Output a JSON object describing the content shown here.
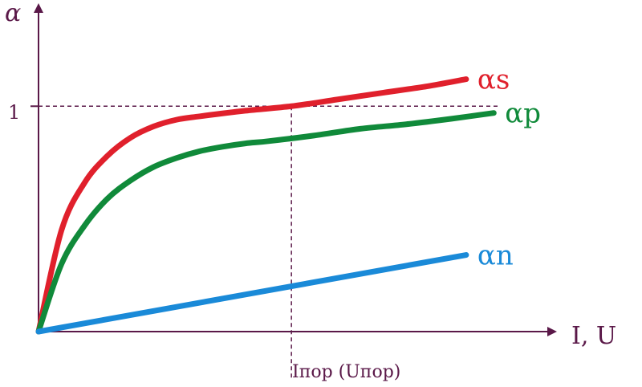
{
  "chart_data": {
    "type": "line",
    "ylabel": "α",
    "xlabel": "I, U",
    "y_tick_labels": [
      "1"
    ],
    "x_tick_labels": [
      "Iпор (Uпор)"
    ],
    "threshold": {
      "y_value": 1,
      "x_label": "Iпор (Uпор)"
    },
    "xlim": [
      0,
      1
    ],
    "ylim": [
      0,
      1.4
    ],
    "series": [
      {
        "name": "αs",
        "color": "#e0202c",
        "x": [
          0.0,
          0.05,
          0.1,
          0.15,
          0.2,
          0.25,
          0.3,
          0.35,
          0.45,
          0.55,
          0.65,
          0.75,
          0.85,
          0.93
        ],
        "y": [
          0.0,
          0.45,
          0.66,
          0.78,
          0.86,
          0.91,
          0.94,
          0.955,
          0.98,
          1.0,
          1.03,
          1.06,
          1.09,
          1.12
        ]
      },
      {
        "name": "αp",
        "color": "#108a3a",
        "x": [
          0.0,
          0.05,
          0.1,
          0.15,
          0.2,
          0.25,
          0.3,
          0.35,
          0.4,
          0.45,
          0.5,
          0.6,
          0.7,
          0.8,
          0.9,
          0.99
        ],
        "y": [
          0.0,
          0.3,
          0.47,
          0.59,
          0.67,
          0.73,
          0.77,
          0.8,
          0.82,
          0.835,
          0.845,
          0.87,
          0.9,
          0.92,
          0.945,
          0.97
        ]
      },
      {
        "name": "αn",
        "color": "#1a8ad8",
        "x": [
          0.0,
          0.93
        ],
        "y": [
          0.0,
          0.34
        ]
      }
    ]
  }
}
